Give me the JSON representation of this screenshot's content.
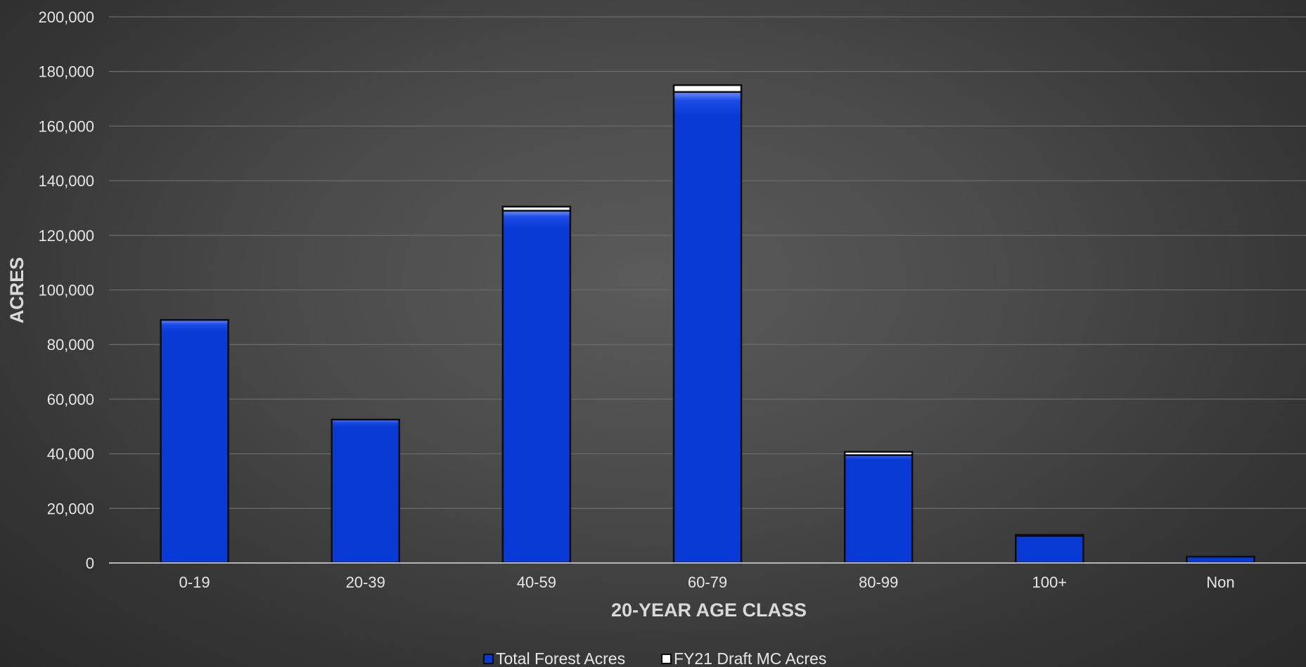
{
  "chart_data": {
    "type": "bar",
    "stacked": true,
    "title": "",
    "xlabel": "20-YEAR AGE CLASS",
    "ylabel": "ACRES",
    "categories": [
      "0-19",
      "20-39",
      "40-59",
      "60-79",
      "80-99",
      "100+",
      "Non"
    ],
    "series": [
      {
        "name": "Total Forest Acres",
        "color": "#0a3ad6",
        "values": [
          89000,
          52500,
          129000,
          172500,
          39500,
          10000,
          2300
        ]
      },
      {
        "name": "FY21 Draft MC Acres",
        "color": "#ffffff",
        "values": [
          0,
          0,
          1500,
          2500,
          1200,
          300,
          0
        ]
      }
    ],
    "ylim": [
      0,
      200000
    ],
    "yticks": [
      0,
      20000,
      40000,
      60000,
      80000,
      100000,
      120000,
      140000,
      160000,
      180000,
      200000
    ],
    "ytick_labels": [
      "0",
      "20,000",
      "40,000",
      "60,000",
      "80,000",
      "100,000",
      "120,000",
      "140,000",
      "160,000",
      "180,000",
      "200,000"
    ],
    "grid": true,
    "legend_position": "bottom"
  }
}
